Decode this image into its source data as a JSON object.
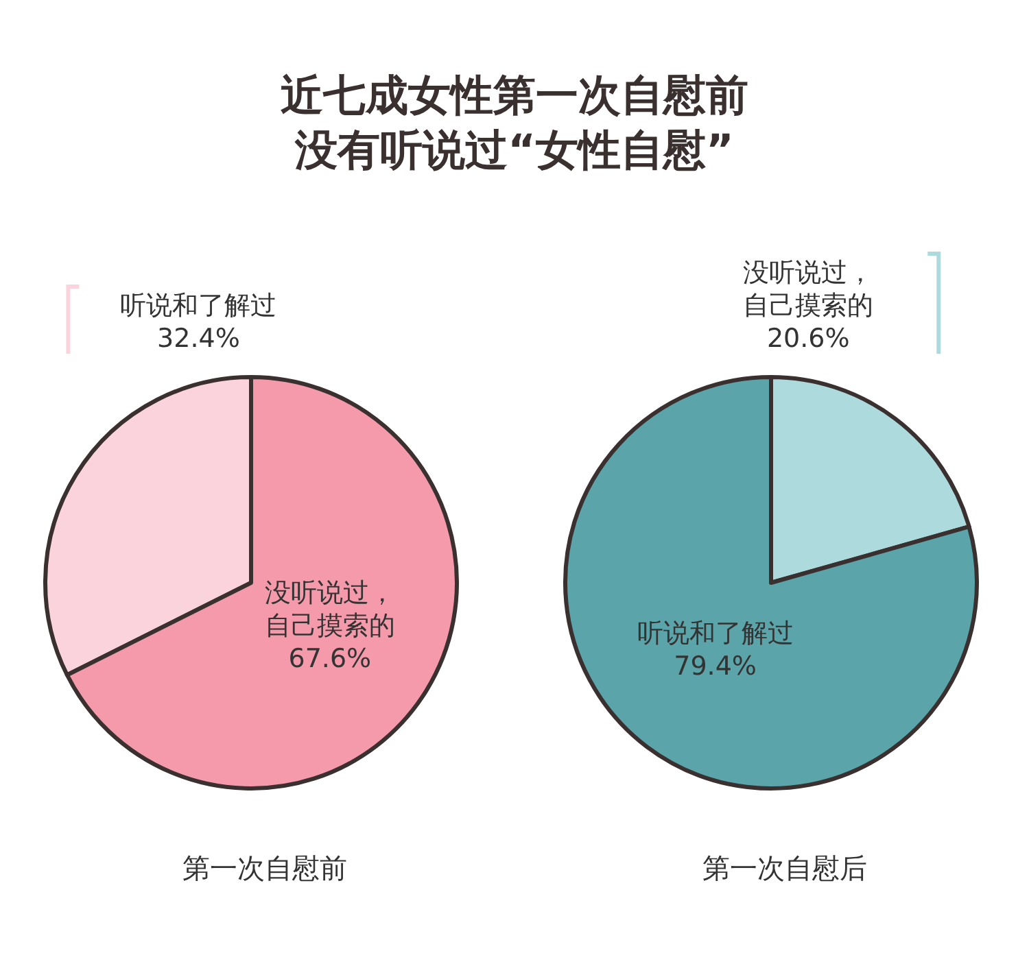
{
  "chart_data": [
    {
      "type": "pie",
      "title": "近七成女性第一次自慰前没有听说过“女性自慰”",
      "xlabel": "第一次自慰前",
      "categories": [
        "听说和了解过",
        "没听说过，自己摸索的"
      ],
      "values": [
        32.4,
        67.6
      ],
      "colors": [
        "#fbd3dc",
        "#f59aab"
      ],
      "value_labels": [
        "32.4%",
        "67.6%"
      ]
    },
    {
      "type": "pie",
      "xlabel": "第一次自慰后",
      "categories": [
        "没听说过，自己摸索的",
        "听说和了解过"
      ],
      "values": [
        20.6,
        79.4
      ],
      "colors": [
        "#acdadd",
        "#5ba4a9"
      ],
      "value_labels": [
        "20.6%",
        "79.4%"
      ]
    }
  ]
}
